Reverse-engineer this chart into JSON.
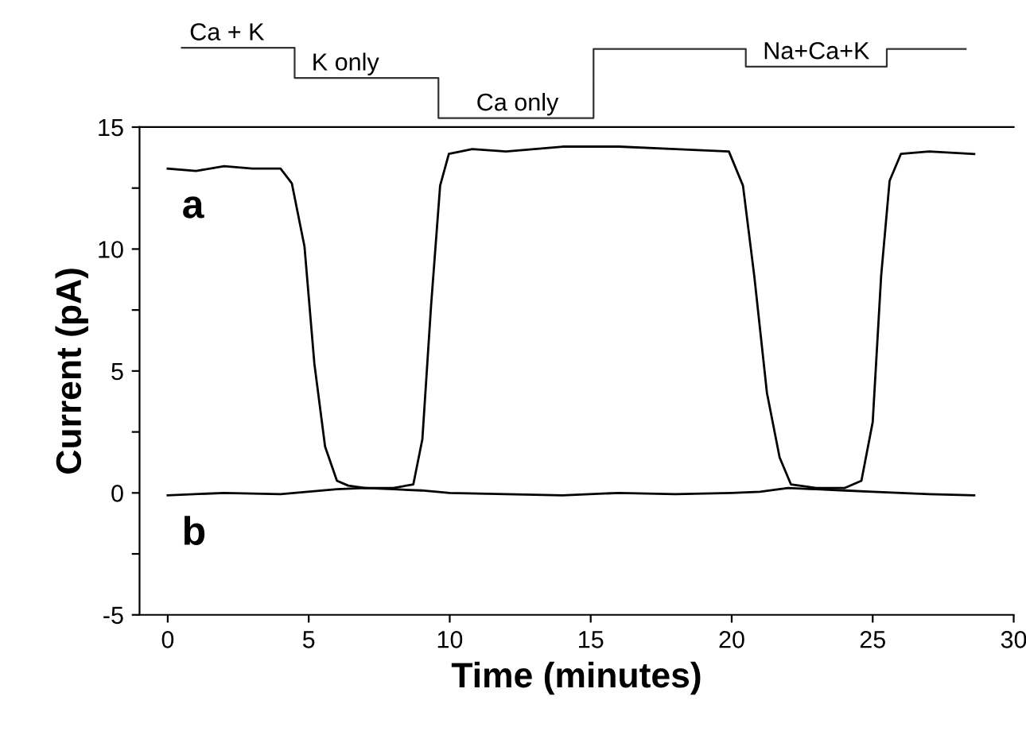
{
  "chart_data": {
    "type": "line",
    "xlabel": "Time (minutes)",
    "ylabel": "Current (pA)",
    "xlim": [
      -1,
      30
    ],
    "xticks": [
      0,
      5,
      10,
      15,
      20,
      25,
      30
    ],
    "ylim": [
      -5,
      15
    ],
    "yticks": [
      -5,
      {
        "value": -2.5,
        "label": null
      },
      0,
      {
        "value": 2.5,
        "label": null
      },
      5,
      {
        "value": 7.5,
        "label": null
      },
      10,
      {
        "value": 12.5,
        "label": null
      },
      15
    ],
    "grid": false,
    "legend": false,
    "marker": "none",
    "line_style": "solid",
    "annotations": [
      "Ca + K",
      "K only",
      "Ca only",
      "Na+Ca+K"
    ],
    "series": [
      {
        "name": "a",
        "color": "#000000",
        "x": [
          0,
          1,
          2,
          3,
          4,
          4.4,
          4.85,
          5.2,
          5.58,
          6.0,
          6.4,
          7,
          8,
          8.71,
          9.03,
          9.34,
          9.66,
          9.97,
          10.8,
          12,
          14,
          16,
          18,
          19.9,
          20.4,
          20.8,
          21.25,
          21.7,
          22.1,
          23,
          24,
          24.6,
          25.0,
          25.3,
          25.6,
          26.0,
          27,
          28.6
        ],
        "values": [
          13.3,
          13.2,
          13.4,
          13.3,
          13.3,
          12.7,
          10.1,
          5.3,
          1.9,
          0.5,
          0.3,
          0.2,
          0.2,
          0.35,
          2.2,
          7.7,
          12.6,
          13.9,
          14.1,
          14.0,
          14.2,
          14.2,
          14.1,
          14.0,
          12.6,
          8.9,
          4.1,
          1.45,
          0.35,
          0.2,
          0.2,
          0.5,
          2.9,
          8.9,
          12.8,
          13.9,
          14.0,
          13.9
        ]
      },
      {
        "name": "b",
        "color": "#000000",
        "x": [
          0,
          2,
          4,
          6,
          7,
          8,
          9,
          10,
          12,
          14,
          16,
          18,
          20,
          21,
          22,
          23,
          24,
          25,
          26,
          27,
          28.6
        ],
        "values": [
          -0.1,
          0,
          -0.05,
          0.15,
          0.2,
          0.15,
          0.1,
          0,
          -0.05,
          -0.1,
          0,
          -0.05,
          0,
          0.05,
          0.2,
          0.15,
          0.1,
          0.05,
          0,
          -0.05,
          -0.1
        ]
      }
    ]
  }
}
